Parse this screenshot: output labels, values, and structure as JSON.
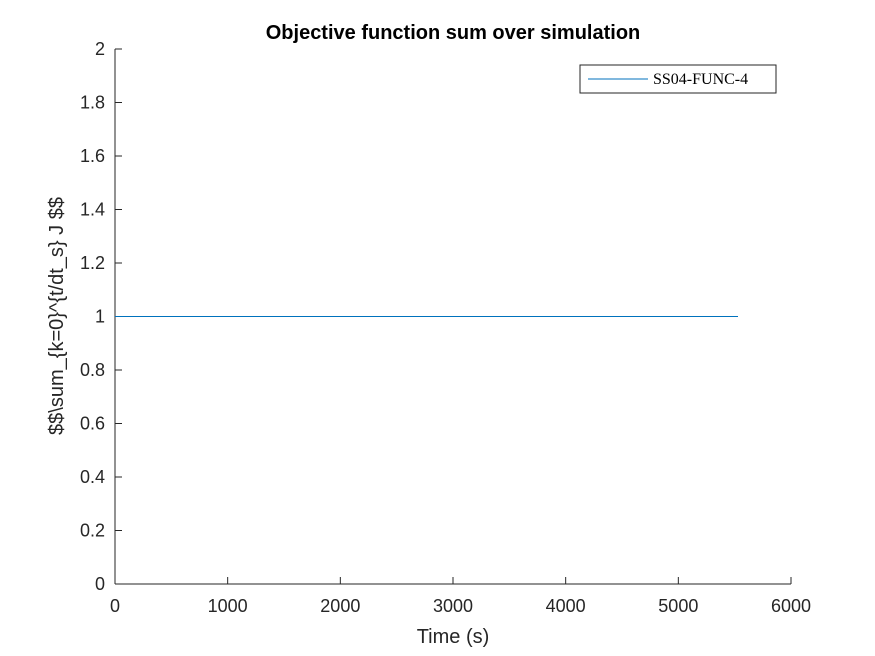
{
  "chart_data": {
    "type": "line",
    "title": "Objective function sum over simulation",
    "xlabel": "Time (s)",
    "ylabel": "$$\\sum_{k=0}^{t/dt_s} J $$",
    "xlim": [
      0,
      6000
    ],
    "ylim": [
      0,
      2
    ],
    "xticks": [
      "0",
      "1000",
      "2000",
      "3000",
      "4000",
      "5000",
      "6000"
    ],
    "yticks": [
      "0",
      "0.2",
      "0.4",
      "0.6",
      "0.8",
      "1",
      "1.2",
      "1.4",
      "1.6",
      "1.8",
      "2"
    ],
    "grid": false,
    "legend_position": "top-right",
    "series": [
      {
        "name": "SS04-FUNC-4",
        "color": "#0072BD",
        "x": [
          0,
          5530
        ],
        "y": [
          1,
          1
        ]
      }
    ]
  }
}
